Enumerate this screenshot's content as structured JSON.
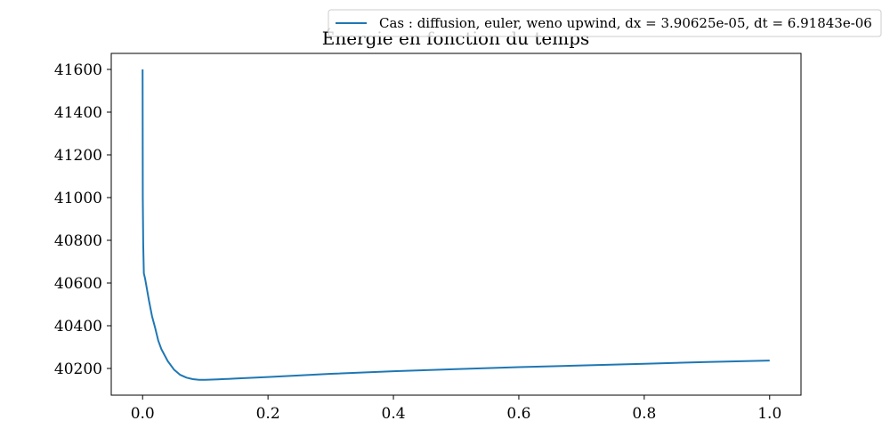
{
  "chart_data": {
    "type": "line",
    "title": "Énergie en fonction du temps",
    "xlabel": "",
    "ylabel": "",
    "xlim": [
      -0.05,
      1.05
    ],
    "ylim": [
      40075,
      41675
    ],
    "x_ticks": [
      0.0,
      0.2,
      0.4,
      0.6,
      0.8,
      1.0
    ],
    "x_tick_labels": [
      "0.0",
      "0.2",
      "0.4",
      "0.6",
      "0.8",
      "1.0"
    ],
    "y_ticks": [
      40200,
      40400,
      40600,
      40800,
      41000,
      41200,
      41400,
      41600
    ],
    "y_tick_labels": [
      "40200",
      "40400",
      "40600",
      "40800",
      "41000",
      "41200",
      "41400",
      "41600"
    ],
    "grid": false,
    "legend_position": "top-right",
    "series": [
      {
        "name": "Cas : diffusion, euler, weno upwind, dx = 3.90625e-05, dt = 6.91843e-06",
        "color": "#1f77b4",
        "x": [
          0.0,
          0.0003,
          0.001,
          0.002,
          0.004,
          0.007,
          0.01,
          0.015,
          0.02,
          0.025,
          0.03,
          0.04,
          0.05,
          0.06,
          0.07,
          0.08,
          0.09,
          0.1,
          0.12,
          0.15,
          0.2,
          0.3,
          0.4,
          0.5,
          0.6,
          0.7,
          0.8,
          0.9,
          1.0
        ],
        "y": [
          41600,
          41000,
          40780,
          40645,
          40620,
          40570,
          40520,
          40445,
          40390,
          40330,
          40290,
          40235,
          40195,
          40170,
          40157,
          40150,
          40147,
          40147,
          40149,
          40153,
          40160,
          40175,
          40187,
          40197,
          40206,
          40214,
          40222,
          40230,
          40237
        ]
      }
    ]
  }
}
